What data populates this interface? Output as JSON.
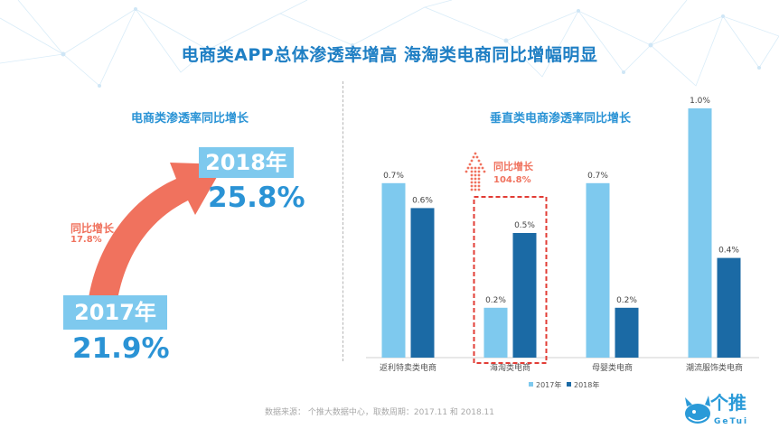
{
  "title": "电商类APP总体渗透率增高 海淘类电商同比增幅明显",
  "left": {
    "subtitle": "电商类渗透率同比增长",
    "year_2018": "2018年",
    "value_2018": "25.8%",
    "year_2017": "2017年",
    "value_2017": "21.9%",
    "growth_label": "同比增长",
    "growth_value": "17.8%"
  },
  "right": {
    "subtitle": "垂直类电商渗透率同比增长",
    "highlight_label": "同比增长",
    "highlight_value": "104.8%"
  },
  "source": "数据来源： 个推大数据中心，取数周期：2017.11 和 2018.11",
  "logo": {
    "name": "个推",
    "sub": "GeTui"
  },
  "colors": {
    "s2017": "#7ec9ee",
    "s2018": "#1b6aa5",
    "accent": "#f0725e",
    "title": "#1f7fc4"
  },
  "chart_data": {
    "type": "bar",
    "title": "垂直类电商渗透率同比增长",
    "categories": [
      "返利特卖类电商",
      "海淘类电商",
      "母婴类电商",
      "潮流服饰类电商"
    ],
    "series": [
      {
        "name": "2017年",
        "values": [
          0.7,
          0.2,
          0.7,
          1.0
        ],
        "labels": [
          "0.7%",
          "0.2%",
          "0.7%",
          "1.0%"
        ]
      },
      {
        "name": "2018年",
        "values": [
          0.6,
          0.5,
          0.2,
          0.4
        ],
        "labels": [
          "0.6%",
          "0.5%",
          "0.2%",
          "0.4%"
        ]
      }
    ],
    "ylim": [
      0,
      1.0
    ],
    "legend": "bottom",
    "highlight_category": "海淘类电商"
  }
}
